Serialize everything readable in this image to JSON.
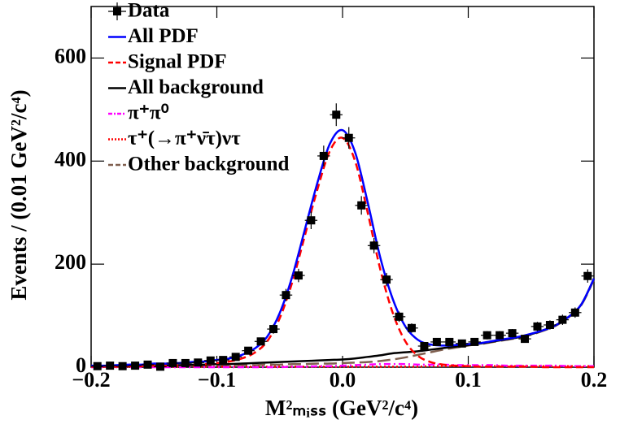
{
  "chart_data": {
    "type": "line",
    "xlabel": "M²ₘᵢₛₛ (GeV²/c⁴)",
    "ylabel": "Events / (0.01 GeV²/c⁴)",
    "xlim": [
      -0.2,
      0.2
    ],
    "ylim": [
      0,
      700
    ],
    "xticks": [
      {
        "value": -0.2,
        "label": "−0.2"
      },
      {
        "value": -0.1,
        "label": "−0.1"
      },
      {
        "value": 0,
        "label": "0.0"
      },
      0.1,
      0.2
    ],
    "yticks": [
      0,
      200,
      400,
      600
    ],
    "legend": "upper left",
    "x": [
      -0.2,
      -0.19,
      -0.18,
      -0.17,
      -0.16,
      -0.15,
      -0.14,
      -0.13,
      -0.12,
      -0.11,
      -0.1,
      -0.09,
      -0.08,
      -0.07,
      -0.06,
      -0.05,
      -0.04,
      -0.03,
      -0.02,
      -0.01,
      0,
      0.01,
      0.02,
      0.03,
      0.04,
      0.05,
      0.06,
      0.07,
      0.08,
      0.09,
      0.1,
      0.11,
      0.12,
      0.13,
      0.14,
      0.15,
      0.16,
      0.17,
      0.18,
      0.19,
      0.2
    ],
    "series": [
      {
        "name": "Data",
        "color": "#000000",
        "style": "points",
        "x": [
          -0.195,
          -0.185,
          -0.175,
          -0.165,
          -0.155,
          -0.145,
          -0.135,
          -0.125,
          -0.115,
          -0.105,
          -0.095,
          -0.085,
          -0.075,
          -0.065,
          -0.055,
          -0.045,
          -0.035,
          -0.025,
          -0.015,
          -0.005,
          0.005,
          0.015,
          0.025,
          0.035,
          0.045,
          0.055,
          0.065,
          0.075,
          0.085,
          0.095,
          0.105,
          0.115,
          0.125,
          0.135,
          0.145,
          0.155,
          0.165,
          0.175,
          0.185,
          0.195
        ],
        "values": [
          2,
          3,
          2,
          3,
          5,
          1,
          8,
          8,
          9,
          13,
          14,
          20,
          32,
          50,
          74,
          140,
          178,
          285,
          410,
          490,
          445,
          314,
          236,
          170,
          98,
          76,
          41,
          49,
          49,
          46,
          49,
          62,
          62,
          66,
          55,
          79,
          82,
          92,
          106,
          177
        ],
        "errors": [
          1,
          2,
          1,
          2,
          2,
          1,
          3,
          3,
          3,
          4,
          4,
          4,
          6,
          7,
          9,
          12,
          13,
          17,
          20,
          22,
          21,
          18,
          15,
          13,
          10,
          9,
          6,
          7,
          7,
          7,
          7,
          8,
          8,
          8,
          7,
          9,
          9,
          10,
          10,
          13
        ]
      },
      {
        "name": "All PDF",
        "color": "#0000ff",
        "style": "solid",
        "values": [
          3,
          3,
          4,
          5,
          5,
          7,
          7,
          8,
          10,
          11,
          14,
          17,
          24,
          36,
          59,
          105,
          176,
          267,
          358,
          434,
          460,
          417,
          320,
          213,
          132,
          79,
          53,
          44,
          42,
          43,
          45,
          47,
          51,
          55,
          59,
          65,
          72,
          82,
          98,
          122,
          172
        ]
      },
      {
        "name": "Signal PDF",
        "color": "#ff0000",
        "style": "dashed",
        "values": [
          1,
          1,
          1,
          2,
          2,
          3,
          3,
          4,
          5,
          6,
          8,
          11,
          17,
          28,
          50,
          95,
          165,
          255,
          345,
          420,
          445,
          400,
          300,
          190,
          105,
          50,
          22,
          10,
          5,
          3,
          2,
          1,
          1,
          1,
          1,
          1,
          0,
          0,
          0,
          0,
          0
        ]
      },
      {
        "name": "All background",
        "color": "#000000",
        "style": "solid",
        "values": [
          2,
          2,
          3,
          3,
          3,
          4,
          4,
          4,
          5,
          5,
          6,
          6,
          7,
          8,
          9,
          10,
          11,
          12,
          13,
          14,
          15,
          17,
          20,
          23,
          27,
          29,
          31,
          34,
          37,
          40,
          43,
          46,
          50,
          54,
          58,
          64,
          72,
          82,
          98,
          122,
          172
        ]
      },
      {
        "name": "π⁺π⁰",
        "color": "#ff00ff",
        "style": "dashdot",
        "values": [
          0,
          0,
          0,
          0,
          0,
          0,
          0,
          0,
          0,
          0,
          0,
          0,
          0,
          0,
          0,
          0,
          1,
          1,
          2,
          2,
          3,
          4,
          5,
          6,
          6,
          6,
          5,
          5,
          5,
          4,
          4,
          4,
          4,
          3,
          3,
          3,
          3,
          3,
          2,
          2,
          2
        ]
      },
      {
        "name": "τ⁺(→π⁺ν̄τ)ντ",
        "color": "#ff0000",
        "style": "dotted",
        "values": [
          1,
          1,
          1,
          1,
          1,
          1,
          1,
          1,
          1,
          1,
          1,
          1,
          1,
          1,
          1,
          1,
          1,
          1,
          1,
          1,
          1,
          1,
          1,
          1,
          1,
          1,
          1,
          2,
          2,
          2,
          2,
          2,
          2,
          2,
          2,
          2,
          2,
          2,
          2,
          2,
          2
        ]
      },
      {
        "name": "Other background",
        "color": "#7f5f4f",
        "style": "longdash",
        "values": [
          1,
          1,
          2,
          2,
          2,
          2,
          3,
          3,
          3,
          3,
          3,
          4,
          4,
          4,
          5,
          5,
          6,
          6,
          7,
          7,
          8,
          9,
          10,
          12,
          15,
          19,
          24,
          29,
          34,
          38,
          42,
          45,
          49,
          53,
          57,
          63,
          71,
          81,
          97,
          121,
          170
        ]
      }
    ]
  }
}
